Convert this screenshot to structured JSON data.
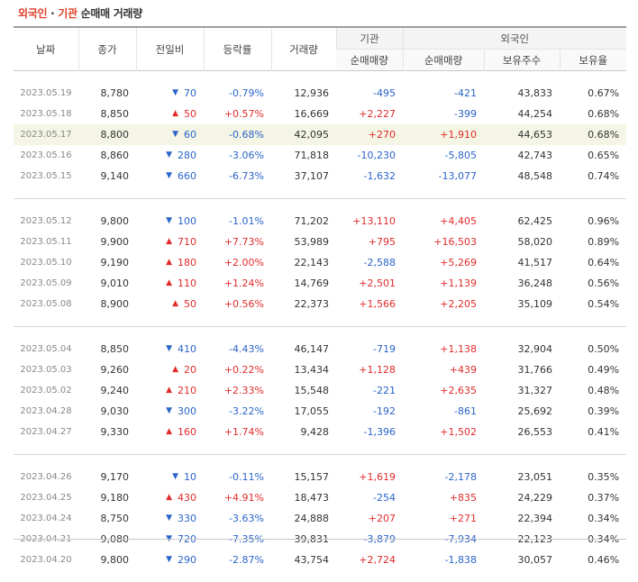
{
  "header": {
    "title_foreign": "외국인",
    "title_dot": "·",
    "title_inst": "기관",
    "title_rest": "순매매 거래량"
  },
  "columns": {
    "date": "날짜",
    "close": "종가",
    "diff": "전일비",
    "rate": "등락률",
    "volume": "거래량",
    "inst_group": "기관",
    "inst_net": "순매매량",
    "foreign_group": "외국인",
    "foreign_net": "순매매량",
    "foreign_hold": "보유주수",
    "foreign_rate": "보유율"
  },
  "colors": {
    "up": "#e02b2b",
    "down": "#2a64c8",
    "highlight": "#f4f5e4",
    "title_accent": "#e0402a"
  },
  "icons": {
    "up": "▲",
    "down": "▼"
  },
  "groups": [
    [
      {
        "date": "2023.05.19",
        "close": "8,780",
        "dir": "down",
        "diff": "70",
        "rate": "-0.79%",
        "vol": "12,936",
        "inst": "-495",
        "fnet": "-421",
        "fhold": "43,833",
        "frate": "0.67%"
      },
      {
        "date": "2023.05.18",
        "close": "8,850",
        "dir": "up",
        "diff": "50",
        "rate": "+0.57%",
        "vol": "16,669",
        "inst": "+2,227",
        "fnet": "-399",
        "fhold": "44,254",
        "frate": "0.68%"
      },
      {
        "date": "2023.05.17",
        "close": "8,800",
        "dir": "down",
        "diff": "60",
        "rate": "-0.68%",
        "vol": "42,095",
        "inst": "+270",
        "fnet": "+1,910",
        "fhold": "44,653",
        "frate": "0.68%",
        "highlight": true
      },
      {
        "date": "2023.05.16",
        "close": "8,860",
        "dir": "down",
        "diff": "280",
        "rate": "-3.06%",
        "vol": "71,818",
        "inst": "-10,230",
        "fnet": "-5,805",
        "fhold": "42,743",
        "frate": "0.65%"
      },
      {
        "date": "2023.05.15",
        "close": "9,140",
        "dir": "down",
        "diff": "660",
        "rate": "-6.73%",
        "vol": "37,107",
        "inst": "-1,632",
        "fnet": "-13,077",
        "fhold": "48,548",
        "frate": "0.74%"
      }
    ],
    [
      {
        "date": "2023.05.12",
        "close": "9,800",
        "dir": "down",
        "diff": "100",
        "rate": "-1.01%",
        "vol": "71,202",
        "inst": "+13,110",
        "fnet": "+4,405",
        "fhold": "62,425",
        "frate": "0.96%"
      },
      {
        "date": "2023.05.11",
        "close": "9,900",
        "dir": "up",
        "diff": "710",
        "rate": "+7.73%",
        "vol": "53,989",
        "inst": "+795",
        "fnet": "+16,503",
        "fhold": "58,020",
        "frate": "0.89%"
      },
      {
        "date": "2023.05.10",
        "close": "9,190",
        "dir": "up",
        "diff": "180",
        "rate": "+2.00%",
        "vol": "22,143",
        "inst": "-2,588",
        "fnet": "+5,269",
        "fhold": "41,517",
        "frate": "0.64%"
      },
      {
        "date": "2023.05.09",
        "close": "9,010",
        "dir": "up",
        "diff": "110",
        "rate": "+1.24%",
        "vol": "14,769",
        "inst": "+2,501",
        "fnet": "+1,139",
        "fhold": "36,248",
        "frate": "0.56%"
      },
      {
        "date": "2023.05.08",
        "close": "8,900",
        "dir": "up",
        "diff": "50",
        "rate": "+0.56%",
        "vol": "22,373",
        "inst": "+1,566",
        "fnet": "+2,205",
        "fhold": "35,109",
        "frate": "0.54%"
      }
    ],
    [
      {
        "date": "2023.05.04",
        "close": "8,850",
        "dir": "down",
        "diff": "410",
        "rate": "-4.43%",
        "vol": "46,147",
        "inst": "-719",
        "fnet": "+1,138",
        "fhold": "32,904",
        "frate": "0.50%"
      },
      {
        "date": "2023.05.03",
        "close": "9,260",
        "dir": "up",
        "diff": "20",
        "rate": "+0.22%",
        "vol": "13,434",
        "inst": "+1,128",
        "fnet": "+439",
        "fhold": "31,766",
        "frate": "0.49%"
      },
      {
        "date": "2023.05.02",
        "close": "9,240",
        "dir": "up",
        "diff": "210",
        "rate": "+2.33%",
        "vol": "15,548",
        "inst": "-221",
        "fnet": "+2,635",
        "fhold": "31,327",
        "frate": "0.48%"
      },
      {
        "date": "2023.04.28",
        "close": "9,030",
        "dir": "down",
        "diff": "300",
        "rate": "-3.22%",
        "vol": "17,055",
        "inst": "-192",
        "fnet": "-861",
        "fhold": "25,692",
        "frate": "0.39%"
      },
      {
        "date": "2023.04.27",
        "close": "9,330",
        "dir": "up",
        "diff": "160",
        "rate": "+1.74%",
        "vol": "9,428",
        "inst": "-1,396",
        "fnet": "+1,502",
        "fhold": "26,553",
        "frate": "0.41%"
      }
    ],
    [
      {
        "date": "2023.04.26",
        "close": "9,170",
        "dir": "down",
        "diff": "10",
        "rate": "-0.11%",
        "vol": "15,157",
        "inst": "+1,619",
        "fnet": "-2,178",
        "fhold": "23,051",
        "frate": "0.35%"
      },
      {
        "date": "2023.04.25",
        "close": "9,180",
        "dir": "up",
        "diff": "430",
        "rate": "+4.91%",
        "vol": "18,473",
        "inst": "-254",
        "fnet": "+835",
        "fhold": "24,229",
        "frate": "0.37%"
      },
      {
        "date": "2023.04.24",
        "close": "8,750",
        "dir": "down",
        "diff": "330",
        "rate": "-3.63%",
        "vol": "24,888",
        "inst": "+207",
        "fnet": "+271",
        "fhold": "22,394",
        "frate": "0.34%"
      },
      {
        "date": "2023.04.21",
        "close": "9,080",
        "dir": "down",
        "diff": "720",
        "rate": "-7.35%",
        "vol": "39,831",
        "inst": "-3,879",
        "fnet": "-7,934",
        "fhold": "22,123",
        "frate": "0.34%"
      },
      {
        "date": "2023.04.20",
        "close": "9,800",
        "dir": "down",
        "diff": "290",
        "rate": "-2.87%",
        "vol": "43,754",
        "inst": "+2,724",
        "fnet": "-1,838",
        "fhold": "30,057",
        "frate": "0.46%"
      }
    ]
  ]
}
